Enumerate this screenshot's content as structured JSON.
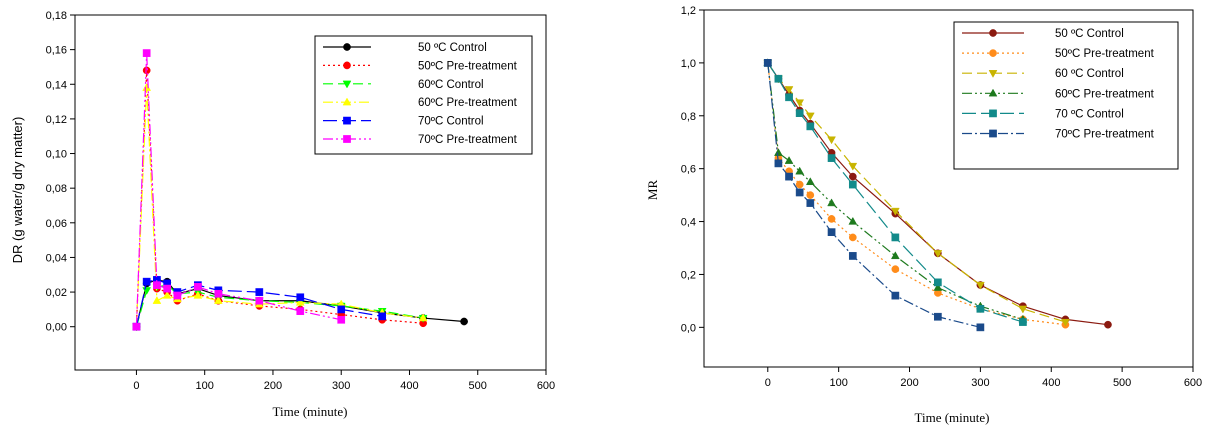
{
  "chart_data": [
    {
      "type": "line",
      "title": "",
      "xlabel": "Time (minute)",
      "ylabel": "DR (g water/g dry matter)",
      "xlim": [
        -90,
        600
      ],
      "ylim": [
        -0.025,
        0.18
      ],
      "x_ticks": [
        "0",
        "100",
        "200",
        "300",
        "400",
        "500",
        "600"
      ],
      "y_ticks": [
        "0,00",
        "0,02",
        "0,04",
        "0,06",
        "0,08",
        "0,10",
        "0,12",
        "0,14",
        "0,16",
        "0,18"
      ],
      "grid": false,
      "legend_position": "top-right",
      "series": [
        {
          "name": "50 ºC Control",
          "color": "#000000",
          "dash": "solid",
          "marker": "circle",
          "x": [
            0,
            15,
            30,
            45,
            60,
            90,
            120,
            180,
            240,
            300,
            360,
            420,
            480
          ],
          "y": [
            0.0,
            0.025,
            0.027,
            0.026,
            0.019,
            0.022,
            0.018,
            0.015,
            0.015,
            0.012,
            0.008,
            0.005,
            0.003
          ]
        },
        {
          "name": "50ºC Pre-treatment",
          "color": "#ff0000",
          "dash": "2,3",
          "marker": "circle",
          "x": [
            0,
            15,
            30,
            45,
            60,
            90,
            120,
            180,
            240,
            300,
            360,
            420
          ],
          "y": [
            0.0,
            0.148,
            0.022,
            0.02,
            0.015,
            0.019,
            0.015,
            0.012,
            0.01,
            0.007,
            0.004,
            0.002
          ]
        },
        {
          "name": "60ºC Control",
          "color": "#00ff00",
          "dash": "10,5",
          "marker": "triangle-down",
          "x": [
            0,
            15,
            30,
            45,
            60,
            90,
            120,
            180,
            240,
            300,
            360,
            420
          ],
          "y": [
            0.0,
            0.021,
            0.023,
            0.024,
            0.019,
            0.02,
            0.017,
            0.015,
            0.014,
            0.012,
            0.009,
            0.005
          ]
        },
        {
          "name": "60ºC Pre-treatment",
          "color": "#ffff00",
          "dash": "10,3,2,3",
          "marker": "triangle-up",
          "x": [
            0,
            15,
            30,
            45,
            60,
            90,
            120,
            180,
            240,
            300,
            360,
            420
          ],
          "y": [
            0.0,
            0.138,
            0.015,
            0.018,
            0.016,
            0.018,
            0.015,
            0.013,
            0.014,
            0.013,
            0.008,
            0.005
          ]
        },
        {
          "name": "70ºC Control",
          "color": "#0000ff",
          "dash": "14,5",
          "marker": "square",
          "x": [
            0,
            15,
            30,
            45,
            60,
            90,
            120,
            180,
            240,
            300,
            360
          ],
          "y": [
            0.0,
            0.026,
            0.027,
            0.025,
            0.02,
            0.024,
            0.021,
            0.02,
            0.017,
            0.01,
            0.006
          ]
        },
        {
          "name": "70ºC Pre-treatment",
          "color": "#ff00ff",
          "dash": "10,3,2,3,2,3",
          "marker": "square",
          "x": [
            0,
            15,
            30,
            45,
            60,
            90,
            120,
            180,
            240,
            300
          ],
          "y": [
            0.0,
            0.158,
            0.024,
            0.022,
            0.018,
            0.023,
            0.019,
            0.015,
            0.009,
            0.004
          ]
        }
      ]
    },
    {
      "type": "line",
      "title": "",
      "xlabel": "Time (minute)",
      "ylabel": "MR",
      "xlim": [
        -90,
        600
      ],
      "ylim": [
        -0.15,
        1.2
      ],
      "x_ticks": [
        "0",
        "100",
        "200",
        "300",
        "400",
        "500",
        "600"
      ],
      "y_ticks": [
        "0,0",
        "0,2",
        "0,4",
        "0,6",
        "0,8",
        "1,0",
        "1,2"
      ],
      "grid": false,
      "legend_position": "top-right",
      "series": [
        {
          "name": "50 ºC Control",
          "color": "#8b1a10",
          "dash": "solid",
          "marker": "circle",
          "x": [
            0,
            15,
            30,
            45,
            60,
            90,
            120,
            180,
            240,
            300,
            360,
            420,
            480
          ],
          "y": [
            1.0,
            0.94,
            0.88,
            0.82,
            0.77,
            0.66,
            0.57,
            0.43,
            0.28,
            0.16,
            0.08,
            0.03,
            0.01
          ]
        },
        {
          "name": "50ºC Pre-treatment",
          "color": "#ff8c1a",
          "dash": "2,3",
          "marker": "circle",
          "x": [
            0,
            15,
            30,
            45,
            60,
            90,
            120,
            180,
            240,
            300,
            360,
            420
          ],
          "y": [
            1.0,
            0.64,
            0.59,
            0.54,
            0.5,
            0.41,
            0.34,
            0.22,
            0.13,
            0.07,
            0.03,
            0.01
          ]
        },
        {
          "name": "60 ºC Control",
          "color": "#c8b400",
          "dash": "10,5",
          "marker": "triangle-down",
          "x": [
            0,
            15,
            30,
            45,
            60,
            90,
            120,
            180,
            240,
            300,
            360,
            420
          ],
          "y": [
            1.0,
            0.94,
            0.9,
            0.85,
            0.8,
            0.71,
            0.61,
            0.44,
            0.28,
            0.16,
            0.07,
            0.02
          ]
        },
        {
          "name": "60ºC Pre-treatment",
          "color": "#1e7a1e",
          "dash": "10,3,2,3,2,3",
          "marker": "triangle-up",
          "x": [
            0,
            15,
            30,
            45,
            60,
            90,
            120,
            180,
            240,
            300,
            360
          ],
          "y": [
            1.0,
            0.66,
            0.63,
            0.59,
            0.55,
            0.47,
            0.4,
            0.27,
            0.15,
            0.08,
            0.03
          ]
        },
        {
          "name": "70 ºC Control",
          "color": "#128a8a",
          "dash": "14,5",
          "marker": "square",
          "x": [
            0,
            15,
            30,
            45,
            60,
            90,
            120,
            180,
            240,
            300,
            360
          ],
          "y": [
            1.0,
            0.94,
            0.87,
            0.81,
            0.76,
            0.64,
            0.54,
            0.34,
            0.17,
            0.07,
            0.02
          ]
        },
        {
          "name": "70ºC Pre-treatment",
          "color": "#1a4a8a",
          "dash": "10,3,2,3",
          "marker": "square",
          "x": [
            0,
            15,
            30,
            45,
            60,
            90,
            120,
            180,
            240,
            300
          ],
          "y": [
            1.0,
            0.62,
            0.57,
            0.51,
            0.47,
            0.36,
            0.27,
            0.12,
            0.04,
            0.0
          ]
        }
      ]
    }
  ]
}
